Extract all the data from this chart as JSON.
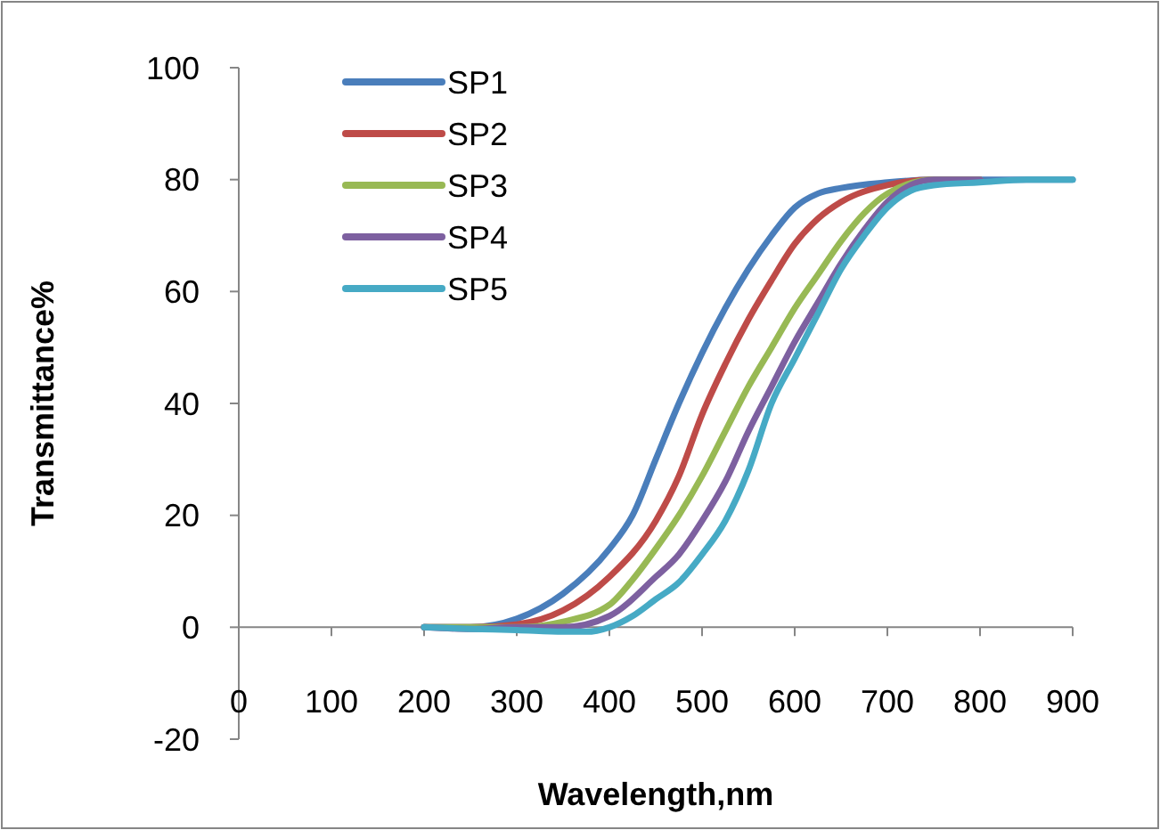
{
  "chart_data": {
    "type": "line",
    "xlabel": "Wavelength,nm",
    "ylabel": "Transmittance%",
    "xlim": [
      0,
      900
    ],
    "xticks": [
      0,
      100,
      200,
      300,
      400,
      500,
      600,
      700,
      800,
      900
    ],
    "ylim": [
      -20,
      100
    ],
    "yticks": [
      -20,
      0,
      20,
      40,
      60,
      80,
      100
    ],
    "grid": false,
    "legend": "top left",
    "marker": "none",
    "line_style": "solid",
    "series": [
      {
        "name": "SP1",
        "color": "#4a7ebb",
        "x": [
          200,
          250,
          300,
          350,
          400,
          425,
          450,
          475,
          500,
          525,
          550,
          575,
          600,
          625,
          650,
          700,
          750,
          800,
          850,
          900
        ],
        "values": [
          0,
          0,
          1.5,
          6,
          14,
          20,
          30,
          40,
          49,
          57,
          64,
          70,
          75,
          77.5,
          78.5,
          79.5,
          80,
          80,
          80,
          80
        ]
      },
      {
        "name": "SP2",
        "color": "#be4b48",
        "x": [
          200,
          250,
          300,
          350,
          400,
          450,
          475,
          500,
          525,
          550,
          575,
          600,
          625,
          650,
          700,
          750,
          800
        ],
        "values": [
          0,
          0,
          0.5,
          3,
          9,
          19,
          27,
          38,
          47,
          55,
          62,
          68.5,
          73,
          76,
          79,
          80,
          80
        ]
      },
      {
        "name": "SP3",
        "color": "#98b954",
        "x": [
          200,
          250,
          300,
          350,
          400,
          425,
          450,
          475,
          500,
          525,
          550,
          575,
          600,
          625,
          650,
          675,
          700,
          750,
          800
        ],
        "values": [
          0,
          0,
          0,
          1,
          4,
          8.5,
          14,
          20,
          27,
          35,
          43,
          50,
          57,
          63,
          69,
          74,
          77.5,
          80,
          80
        ]
      },
      {
        "name": "SP4",
        "color": "#7d60a0",
        "x": [
          200,
          250,
          300,
          350,
          400,
          450,
          475,
          500,
          525,
          550,
          575,
          600,
          625,
          650,
          675,
          700,
          725,
          750,
          800
        ],
        "values": [
          0,
          -0.3,
          0,
          0,
          2,
          9,
          13,
          19,
          26,
          35,
          43,
          51,
          58,
          65,
          71,
          76,
          79,
          80,
          80
        ]
      },
      {
        "name": "SP5",
        "color": "#46aac5",
        "x": [
          200,
          250,
          300,
          350,
          375,
          400,
          425,
          450,
          475,
          500,
          525,
          550,
          575,
          600,
          625,
          650,
          675,
          700,
          725,
          750,
          800,
          850,
          900
        ],
        "values": [
          0,
          -0.3,
          -0.5,
          -0.8,
          -0.8,
          0,
          2,
          5,
          8,
          13,
          19,
          28,
          40,
          48,
          56,
          64,
          70,
          75,
          78,
          79,
          79.5,
          80,
          80
        ]
      }
    ]
  }
}
